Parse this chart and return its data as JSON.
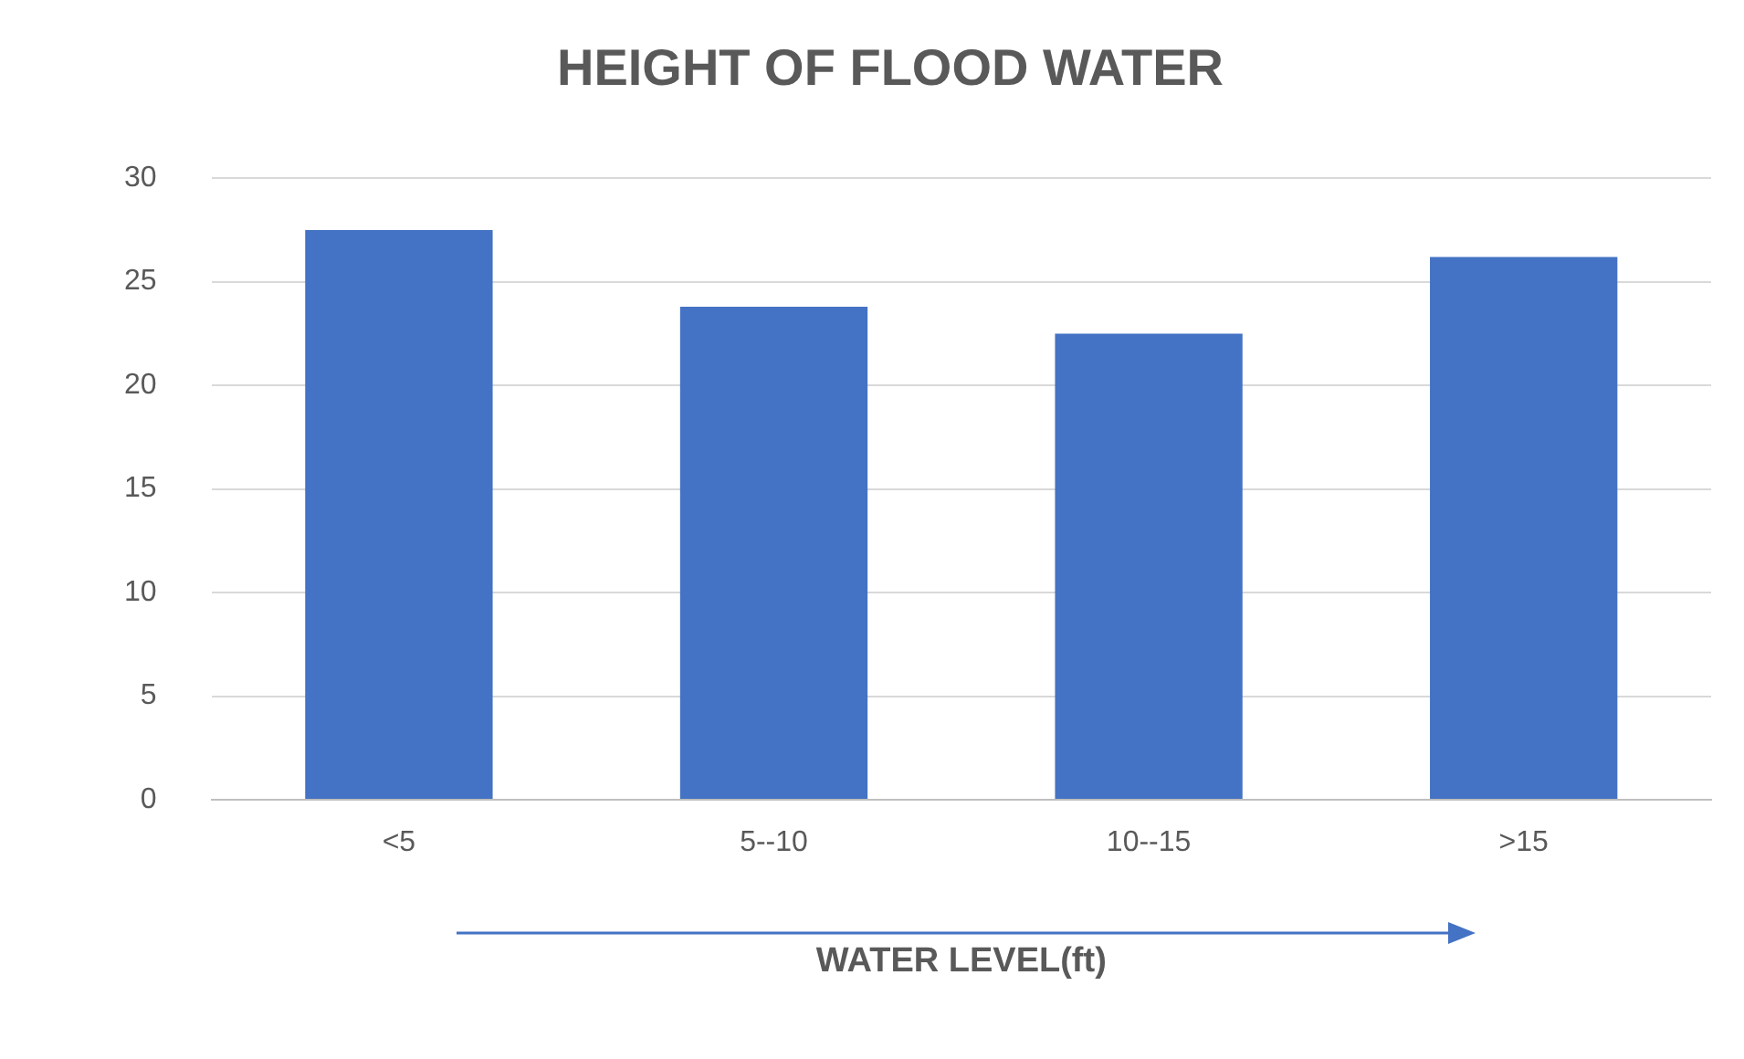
{
  "chart_data": {
    "type": "bar",
    "title": "HEIGHT OF FLOOD WATER",
    "xlabel": "WATER LEVEL(ft)",
    "categories": [
      "<5",
      "5--10",
      "10--15",
      ">15"
    ],
    "values": [
      27.5,
      23.8,
      22.5,
      26.2
    ],
    "color": "#4472c4",
    "ylim": [
      0,
      30
    ],
    "yticks": [
      0,
      5,
      10,
      15,
      20,
      25,
      30
    ],
    "grid": "y",
    "legend": false
  }
}
